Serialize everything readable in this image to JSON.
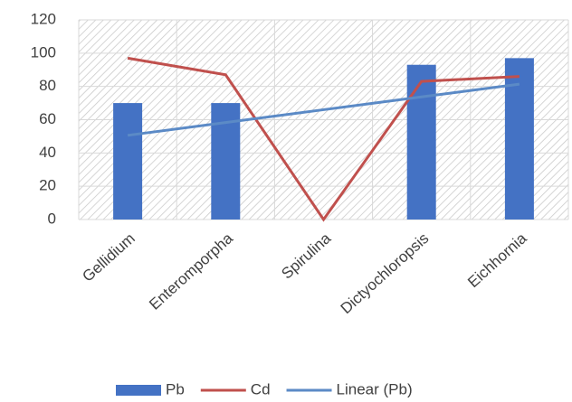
{
  "chart_data": {
    "type": "bar",
    "categories": [
      "Gellidium",
      "Enteromporpha",
      "Spirulina",
      "Dictyochloropsis",
      "Eichhornia"
    ],
    "series": [
      {
        "name": "Pb",
        "type": "bar",
        "color": "#4472c4",
        "values": [
          70,
          70,
          0,
          93,
          97
        ]
      },
      {
        "name": "Cd",
        "type": "line",
        "color": "#c0504d",
        "values": [
          97,
          87,
          0,
          83,
          86
        ]
      },
      {
        "name": "Linear (Pb)",
        "type": "line",
        "color": "#5b8ac6",
        "values": [
          50.6,
          58.3,
          66,
          73.7,
          81.4
        ]
      }
    ],
    "ylim": [
      0,
      120
    ],
    "yticks": [
      0,
      20,
      40,
      60,
      80,
      100,
      120
    ],
    "grid": true,
    "legend": "bottom"
  }
}
